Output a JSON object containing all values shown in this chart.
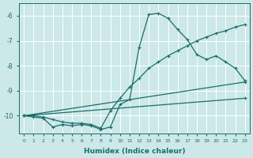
{
  "xlabel": "Humidex (Indice chaleur)",
  "xlim_min": -0.5,
  "xlim_max": 23.5,
  "ylim_min": -10.7,
  "ylim_max": -5.5,
  "yticks": [
    -10,
    -9,
    -8,
    -7,
    -6
  ],
  "xticks": [
    0,
    1,
    2,
    3,
    4,
    5,
    6,
    7,
    8,
    9,
    10,
    11,
    12,
    13,
    14,
    15,
    16,
    17,
    18,
    19,
    20,
    21,
    22,
    23
  ],
  "background_color": "#cce8e8",
  "line_color": "#1a6e6a",
  "grid_color": "#b0d8d8",
  "line1_x": [
    0,
    1,
    2,
    3,
    4,
    5,
    6,
    7,
    8,
    9,
    10,
    11,
    12,
    13,
    14,
    15,
    16,
    17,
    18,
    19,
    20,
    21,
    22,
    23
  ],
  "line1_y": [
    -10.0,
    -10.05,
    -10.1,
    -10.45,
    -10.35,
    -10.4,
    -10.35,
    -10.4,
    -10.55,
    -10.45,
    -9.55,
    -9.35,
    -7.25,
    -5.95,
    -5.9,
    -6.1,
    -6.55,
    -6.95,
    -7.55,
    -7.75,
    -7.6,
    -7.85,
    -8.1,
    -8.6
  ],
  "line2_x": [
    0,
    1,
    2,
    3,
    4,
    5,
    6,
    7,
    8,
    9,
    10,
    11,
    12,
    13,
    14,
    15,
    16,
    17,
    18,
    19,
    20,
    21,
    22,
    23
  ],
  "line2_y": [
    -10.0,
    -10.0,
    -10.05,
    -10.15,
    -10.25,
    -10.3,
    -10.3,
    -10.35,
    -10.5,
    -9.8,
    -9.3,
    -8.85,
    -8.5,
    -8.1,
    -7.85,
    -7.6,
    -7.4,
    -7.2,
    -7.0,
    -6.85,
    -6.7,
    -6.6,
    -6.45,
    -6.35
  ],
  "line3_x": [
    0,
    23
  ],
  "line3_y": [
    -10.0,
    -8.65
  ],
  "line4_x": [
    0,
    23
  ],
  "line4_y": [
    -10.0,
    -9.3
  ]
}
